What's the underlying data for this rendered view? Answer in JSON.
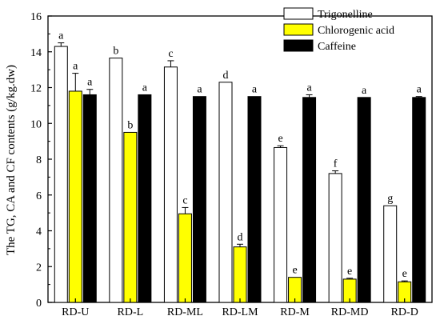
{
  "chart_data": {
    "type": "bar",
    "title": "",
    "xlabel": "",
    "ylabel": "The TG, CA and CF contents (g/kg.dw)",
    "ylim": [
      0,
      16
    ],
    "yticks": [
      0,
      2,
      4,
      6,
      8,
      10,
      12,
      14,
      16
    ],
    "categories": [
      "RD-U",
      "RD-L",
      "RD-ML",
      "RD-LM",
      "RD-M",
      "RD-MD",
      "RD-D"
    ],
    "legend_position": "top-right",
    "grid": false,
    "series": [
      {
        "name": "Trigonelline",
        "color": "#ffffff",
        "values": [
          14.3,
          13.65,
          13.15,
          12.3,
          8.65,
          7.2,
          5.4
        ],
        "errors": [
          0.2,
          0.0,
          0.35,
          0.0,
          0.1,
          0.15,
          0.0
        ],
        "labels": [
          "a",
          "b",
          "c",
          "d",
          "e",
          "f",
          "g"
        ]
      },
      {
        "name": "Chlorogenic acid",
        "color": "#ffff00",
        "values": [
          11.8,
          9.5,
          4.95,
          3.1,
          1.4,
          1.3,
          1.15
        ],
        "errors": [
          1.0,
          0.0,
          0.35,
          0.15,
          0.0,
          0.05,
          0.05
        ],
        "labels": [
          "a",
          "b",
          "c",
          "d",
          "e",
          "e",
          "e"
        ]
      },
      {
        "name": "Caffeine",
        "color": "#000000",
        "values": [
          11.6,
          11.6,
          11.5,
          11.5,
          11.45,
          11.45,
          11.45
        ],
        "errors": [
          0.3,
          0.0,
          0.0,
          0.0,
          0.15,
          0.0,
          0.05
        ],
        "labels": [
          "a",
          "a",
          "a",
          "a",
          "a",
          "a",
          "a"
        ]
      }
    ]
  }
}
